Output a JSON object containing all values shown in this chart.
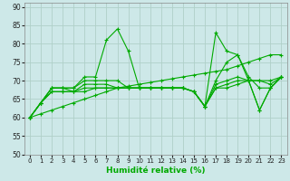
{
  "xlabel": "Humidité relative (%)",
  "bg_color": "#cde8e8",
  "grid_color": "#b0d0c8",
  "line_color": "#00aa00",
  "xlim": [
    -0.5,
    23.5
  ],
  "ylim": [
    50,
    91
  ],
  "yticks": [
    50,
    55,
    60,
    65,
    70,
    75,
    80,
    85,
    90
  ],
  "xticks": [
    0,
    1,
    2,
    3,
    4,
    5,
    6,
    7,
    8,
    9,
    10,
    11,
    12,
    13,
    14,
    15,
    16,
    17,
    18,
    19,
    20,
    21,
    22,
    23
  ],
  "series": [
    [
      60,
      64,
      68,
      68,
      68,
      71,
      71,
      81,
      84,
      78,
      68,
      68,
      68,
      68,
      68,
      67,
      63,
      83,
      78,
      77,
      71,
      68,
      68,
      71
    ],
    [
      60,
      64,
      68,
      68,
      68,
      70,
      70,
      70,
      70,
      68,
      68,
      68,
      68,
      68,
      68,
      67,
      63,
      70,
      75,
      77,
      70,
      70,
      70,
      71
    ],
    [
      60,
      64,
      68,
      68,
      67,
      69,
      69,
      69,
      68,
      68,
      68,
      68,
      68,
      68,
      68,
      67,
      63,
      69,
      70,
      71,
      70,
      70,
      69,
      71
    ],
    [
      60,
      64,
      67,
      67,
      67,
      68,
      68,
      68,
      68,
      68,
      68,
      68,
      68,
      68,
      68,
      67,
      63,
      68,
      69,
      70,
      70,
      62,
      68,
      71
    ],
    [
      60,
      64,
      67,
      67,
      67,
      67,
      68,
      68,
      68,
      68,
      68,
      68,
      68,
      68,
      68,
      67,
      63,
      68,
      68,
      69,
      70,
      62,
      68,
      71
    ]
  ],
  "trend_line": [
    60,
    61,
    62,
    63,
    64,
    65,
    66,
    67,
    68,
    68.5,
    69,
    69.5,
    70,
    70.5,
    71,
    71.5,
    72,
    72.5,
    73,
    74,
    75,
    76,
    77,
    77
  ]
}
